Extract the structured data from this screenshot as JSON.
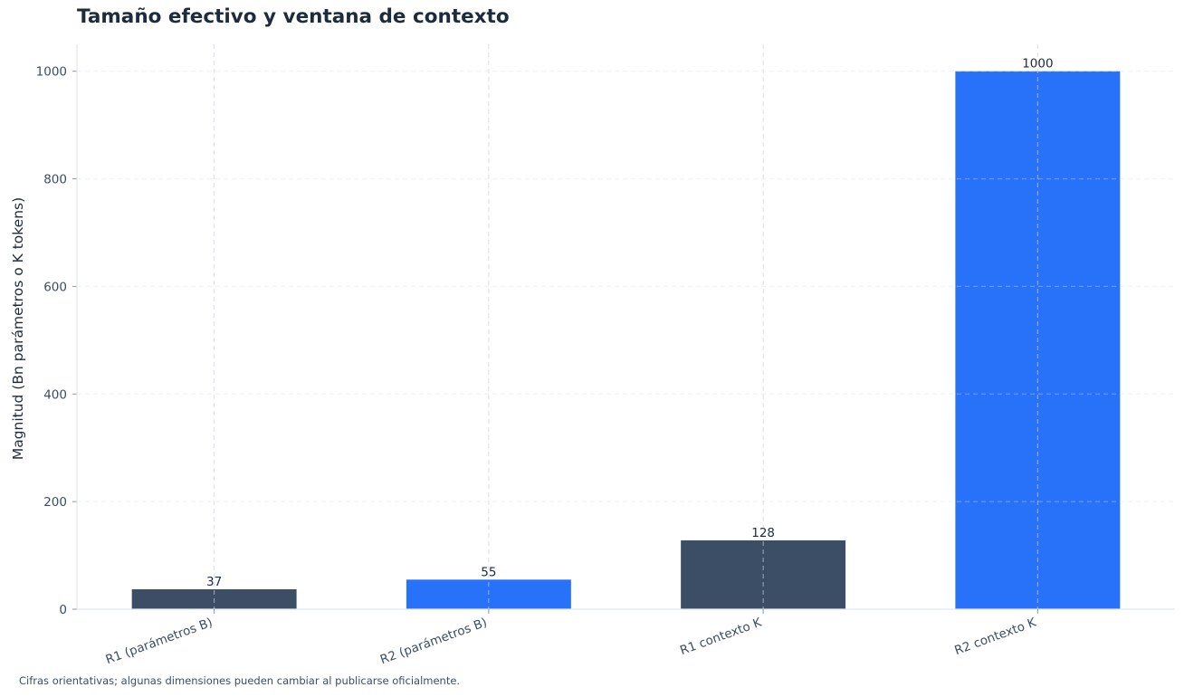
{
  "chart_data": {
    "type": "bar",
    "title": "Tamaño efectivo y ventana de contexto",
    "xlabel": "",
    "ylabel": "Magnitud (Bn parámetros o K tokens)",
    "categories": [
      "R1 (parámetros B)",
      "R2 (parámetros B)",
      "R1 contexto K",
      "R2 contexto K"
    ],
    "values": [
      37,
      55,
      128,
      1000
    ],
    "bar_colors": [
      "#3b4e65",
      "#2872fa",
      "#3b4e65",
      "#2872fa"
    ],
    "data_labels": [
      "37",
      "55",
      "128",
      "1000"
    ],
    "ylim": [
      0,
      1050
    ],
    "yticks": [
      0,
      200,
      400,
      600,
      800,
      1000
    ],
    "grid": true,
    "legend": null
  },
  "footnote": "Cifras orientativas; algunas dimensiones pueden cambiar al publicarse oficialmente.",
  "colors": {
    "title": "#1c2b3d",
    "tick_text": "#3b4e65",
    "axis": "#e2e6ee",
    "grid": "#e9ecf2"
  }
}
